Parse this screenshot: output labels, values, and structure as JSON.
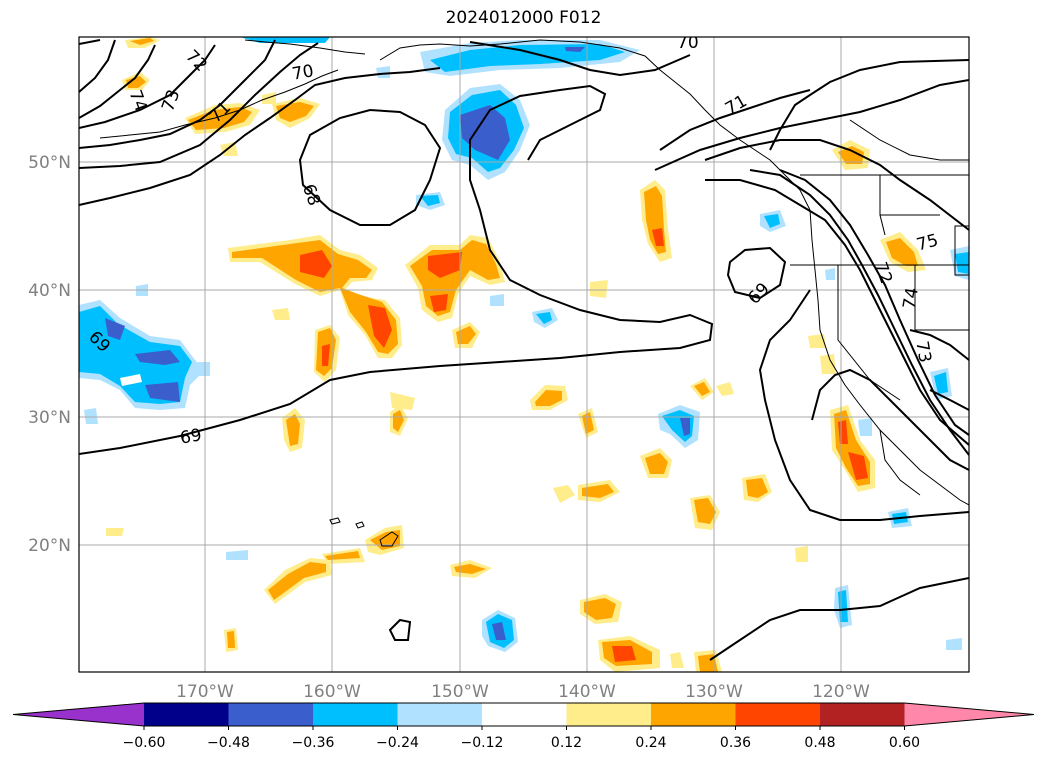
{
  "title": "2024012000 F012",
  "lat_labels": [
    "50°N",
    "40°N",
    "30°N",
    "20°N"
  ],
  "lon_labels": [
    "170°W",
    "160°W",
    "150°W",
    "140°W",
    "130°W",
    "120°W"
  ],
  "contour_labels": [
    "72",
    "74",
    "73",
    "71",
    "70",
    "70",
    "71",
    "68",
    "69",
    "69",
    "69",
    "75",
    "72",
    "74",
    "73"
  ],
  "colorbar": {
    "ticks": [
      "−0.60",
      "−0.48",
      "−0.36",
      "−0.24",
      "−0.12",
      "0.12",
      "0.24",
      "0.36",
      "0.48",
      "0.60"
    ],
    "colors": [
      "#9932cc",
      "#00008b",
      "#3a5fcd",
      "#00bfff",
      "#b0e2ff",
      "#ffffff",
      "#ffec8b",
      "#ffa500",
      "#ff4500",
      "#b22222",
      "#ff88aa"
    ]
  },
  "fill_colors": {
    "light_yellow": "#ffec8b",
    "orange": "#ffa500",
    "red_orange": "#ff4500",
    "light_blue": "#b0e2ff",
    "sky_blue": "#00bfff",
    "royal_blue": "#3a5fcd"
  }
}
